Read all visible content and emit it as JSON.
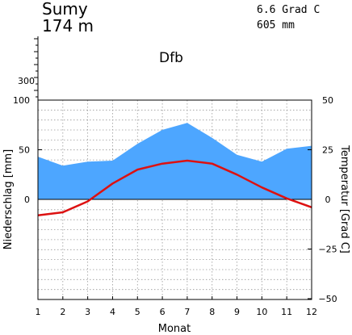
{
  "station": {
    "name": "Sumy",
    "elevation": "174  m"
  },
  "annual": {
    "temperature": "6.6 Grad C",
    "precipitation": "605 mm"
  },
  "climate_class": "Dfb",
  "chart_data": {
    "type": "area",
    "xlabel": "Monat",
    "ylabel_left": "Niederschlag [mm]",
    "ylabel_right": "Temperatur [Grad C]",
    "x": [
      1,
      2,
      3,
      4,
      5,
      6,
      7,
      8,
      9,
      10,
      11,
      12
    ],
    "x_ticks": [
      "1",
      "2",
      "3",
      "4",
      "5",
      "6",
      "7",
      "8",
      "9",
      "10",
      "11",
      "12"
    ],
    "precip_ticks": [
      "0",
      "50",
      "100"
    ],
    "precip_upper_tick": "300",
    "temp_ticks": [
      "50",
      "25",
      "0",
      "−25",
      "−50"
    ],
    "precip_ylim": [
      0,
      100
    ],
    "temp_ylim": [
      -50,
      50
    ],
    "grid": true,
    "series": [
      {
        "name": "Niederschlag",
        "unit": "mm",
        "color": "#4da6ff",
        "values": [
          43,
          34,
          38,
          39,
          56,
          70,
          77,
          62,
          45,
          38,
          51,
          54
        ]
      },
      {
        "name": "Temperatur",
        "unit": "Grad C",
        "color": "#dd1111",
        "values": [
          -8,
          -6.5,
          -1,
          8,
          15,
          18,
          19.5,
          18,
          12.5,
          6,
          0.5,
          -4
        ]
      }
    ]
  }
}
